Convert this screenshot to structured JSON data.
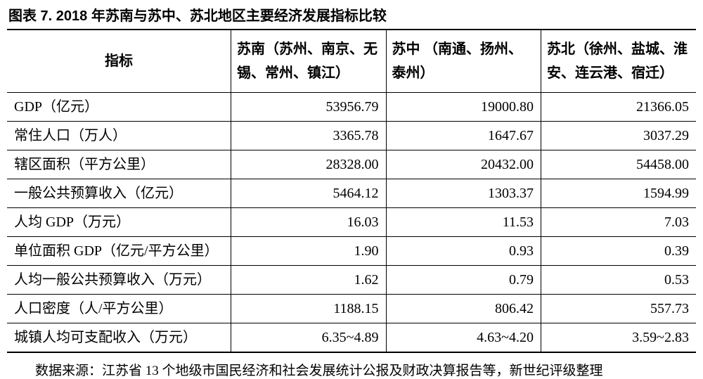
{
  "title": "图表 7. 2018 年苏南与苏中、苏北地区主要经济发展指标比较",
  "columns": [
    "指标",
    "苏南（苏州、南京、无锡、常州、镇江）",
    "苏中\n（南通、扬州、泰州）",
    "苏北（徐州、盐城、淮安、连云港、宿迁）"
  ],
  "rows": [
    {
      "label": "GDP（亿元）",
      "v1": "53956.79",
      "v2": "19000.80",
      "v3": "21366.05"
    },
    {
      "label": "常住人口（万人）",
      "v1": "3365.78",
      "v2": "1647.67",
      "v3": "3037.29"
    },
    {
      "label": "辖区面积（平方公里）",
      "v1": "28328.00",
      "v2": "20432.00",
      "v3": "54458.00"
    },
    {
      "label": "一般公共预算收入（亿元）",
      "v1": "5464.12",
      "v2": "1303.37",
      "v3": "1594.99"
    },
    {
      "label": "人均 GDP（万元）",
      "v1": "16.03",
      "v2": "11.53",
      "v3": "7.03"
    },
    {
      "label": "单位面积 GDP（亿元/平方公里）",
      "v1": "1.90",
      "v2": "0.93",
      "v3": "0.39"
    },
    {
      "label": "人均一般公共预算收入（万元）",
      "v1": "1.62",
      "v2": "0.79",
      "v3": "0.53"
    },
    {
      "label": "人口密度（人/平方公里）",
      "v1": "1188.15",
      "v2": "806.42",
      "v3": "557.73"
    },
    {
      "label": "城镇人均可支配收入（万元）",
      "v1": "6.35~4.89",
      "v2": "4.63~4.20",
      "v3": "3.59~2.83"
    }
  ],
  "source": "数据来源：江苏省 13 个地级市国民经济和社会发展统计公报及财政决算报告等，新世纪评级整理",
  "style": {
    "border_color": "#000000",
    "header_font_size_pt": 15,
    "body_font_size_pt": 15,
    "title_font_size_pt": 15
  }
}
